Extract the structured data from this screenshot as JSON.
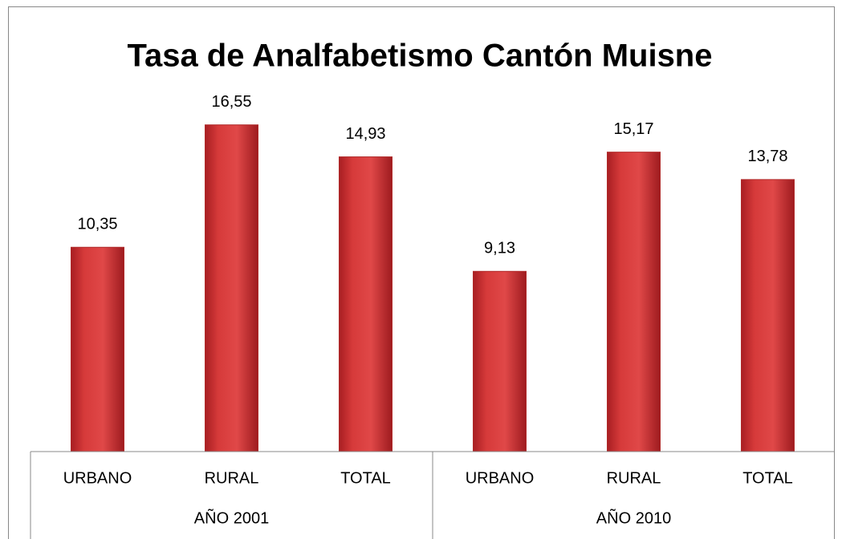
{
  "chart_data": {
    "type": "bar",
    "title": "Tasa de Analfabetismo Cantón Muisne",
    "categories": [
      "URBANO",
      "RURAL",
      "TOTAL",
      "URBANO",
      "RURAL",
      "TOTAL"
    ],
    "groups": [
      "AÑO 2001",
      "AÑO 2010"
    ],
    "values": [
      10.35,
      16.55,
      14.93,
      9.13,
      15.17,
      13.78
    ],
    "value_labels": [
      "10,35",
      "16,55",
      "14,93",
      "9,13",
      "15,17",
      "13,78"
    ],
    "color": "#d63a3a",
    "ylim": [
      0,
      18
    ]
  }
}
